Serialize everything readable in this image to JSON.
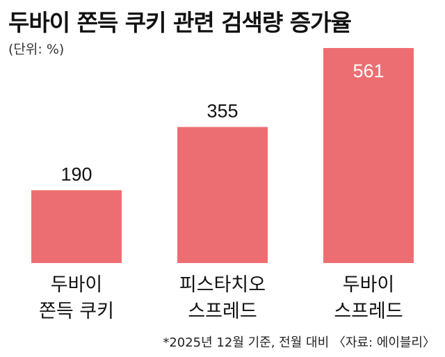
{
  "title": "두바이 쫀득 쿠키 관련 검색량 증가율",
  "unit_label": "(단위: %)",
  "footnote": "*2025년 12월 기준, 전월 대비 〈자료: 에이블리〉",
  "colors": {
    "bar": "#ed6e72",
    "value_dark": "#111111",
    "value_light": "#ffffff"
  },
  "chart_data": {
    "type": "bar",
    "title": "두바이 쫀득 쿠키 관련 검색량 증가율",
    "ylabel": "(단위: %)",
    "ylim": [
      0,
      561
    ],
    "categories": [
      [
        "두바이",
        "쫀득 쿠키"
      ],
      [
        "피스타치오",
        "스프레드"
      ],
      [
        "두바이",
        "스프레드"
      ]
    ],
    "values": [
      190,
      355,
      561
    ]
  }
}
